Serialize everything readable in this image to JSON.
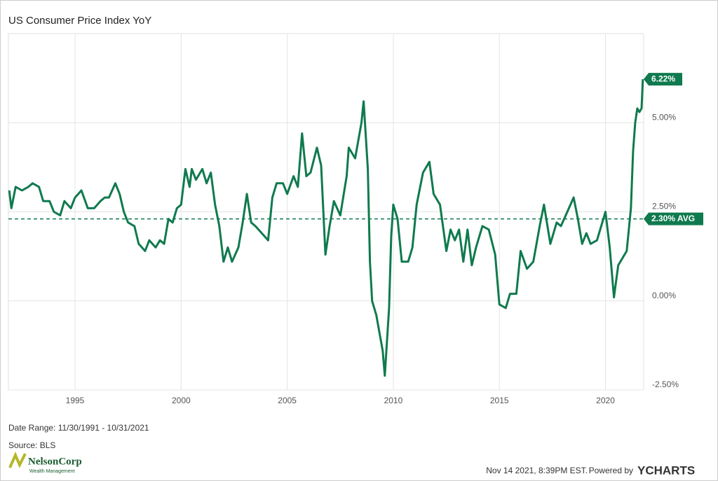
{
  "chart_data": {
    "type": "line",
    "title": "US Consumer Price Index YoY",
    "x": [
      1991.9,
      1992.0,
      1992.2,
      1992.5,
      1992.8,
      1993.0,
      1993.3,
      1993.5,
      1993.8,
      1994.0,
      1994.3,
      1994.5,
      1994.8,
      1995.0,
      1995.3,
      1995.6,
      1995.9,
      1996.2,
      1996.4,
      1996.6,
      1996.9,
      1997.1,
      1997.3,
      1997.5,
      1997.8,
      1998.0,
      1998.3,
      1998.5,
      1998.8,
      1999.0,
      1999.2,
      1999.4,
      1999.6,
      1999.8,
      2000.0,
      2000.2,
      2000.4,
      2000.5,
      2000.7,
      2001.0,
      2001.2,
      2001.4,
      2001.6,
      2001.8,
      2002.0,
      2002.2,
      2002.4,
      2002.7,
      2002.9,
      2003.1,
      2003.3,
      2003.5,
      2003.8,
      2004.1,
      2004.3,
      2004.5,
      2004.8,
      2005.0,
      2005.3,
      2005.5,
      2005.7,
      2005.9,
      2006.1,
      2006.4,
      2006.6,
      2006.8,
      2007.0,
      2007.2,
      2007.5,
      2007.8,
      2007.9,
      2008.2,
      2008.5,
      2008.6,
      2008.8,
      2008.9,
      2009.0,
      2009.2,
      2009.5,
      2009.6,
      2009.8,
      2009.9,
      2010.0,
      2010.2,
      2010.4,
      2010.7,
      2010.9,
      2011.1,
      2011.4,
      2011.7,
      2011.9,
      2012.2,
      2012.5,
      2012.7,
      2012.9,
      2013.1,
      2013.3,
      2013.5,
      2013.7,
      2013.9,
      2014.2,
      2014.5,
      2014.8,
      2015.0,
      2015.3,
      2015.5,
      2015.8,
      2016.0,
      2016.3,
      2016.6,
      2016.9,
      2017.1,
      2017.4,
      2017.7,
      2017.9,
      2018.2,
      2018.5,
      2018.7,
      2018.9,
      2019.1,
      2019.3,
      2019.6,
      2019.9,
      2020.0,
      2020.2,
      2020.4,
      2020.6,
      2020.8,
      2021.0,
      2021.2,
      2021.3,
      2021.4,
      2021.5,
      2021.6,
      2021.7,
      2021.76
    ],
    "series": [
      {
        "name": "US Consumer Price Index YoY",
        "color": "#0f7a4e",
        "values": [
          3.1,
          2.6,
          3.2,
          3.1,
          3.2,
          3.3,
          3.2,
          2.8,
          2.8,
          2.5,
          2.4,
          2.8,
          2.6,
          2.9,
          3.1,
          2.6,
          2.6,
          2.8,
          2.9,
          2.9,
          3.3,
          3.0,
          2.5,
          2.2,
          2.1,
          1.6,
          1.4,
          1.7,
          1.5,
          1.7,
          1.6,
          2.3,
          2.2,
          2.6,
          2.7,
          3.7,
          3.2,
          3.7,
          3.4,
          3.7,
          3.3,
          3.6,
          2.7,
          2.1,
          1.1,
          1.5,
          1.1,
          1.5,
          2.2,
          3.0,
          2.2,
          2.1,
          1.9,
          1.7,
          2.9,
          3.3,
          3.3,
          3.0,
          3.5,
          3.2,
          4.7,
          3.5,
          3.6,
          4.3,
          3.8,
          1.3,
          2.1,
          2.8,
          2.4,
          3.5,
          4.3,
          4.0,
          5.0,
          5.6,
          3.7,
          1.1,
          0.0,
          -0.4,
          -1.4,
          -2.1,
          -0.2,
          1.8,
          2.7,
          2.3,
          1.1,
          1.1,
          1.5,
          2.7,
          3.6,
          3.9,
          3.0,
          2.7,
          1.4,
          2.0,
          1.7,
          2.0,
          1.1,
          2.0,
          1.0,
          1.5,
          2.1,
          2.0,
          1.3,
          -0.1,
          -0.2,
          0.2,
          0.2,
          1.4,
          0.9,
          1.1,
          2.1,
          2.7,
          1.6,
          2.2,
          2.1,
          2.5,
          2.9,
          2.3,
          1.6,
          1.9,
          1.6,
          1.7,
          2.3,
          2.5,
          1.5,
          0.1,
          1.0,
          1.2,
          1.4,
          2.6,
          4.2,
          5.0,
          5.4,
          5.3,
          5.4,
          6.22
        ]
      }
    ],
    "end_label": "6.22%",
    "average": {
      "value": 2.3,
      "label": "2.30% AVG"
    },
    "xlim": [
      1991.86,
      2021.8
    ],
    "xticks": [
      1995,
      2000,
      2005,
      2010,
      2015,
      2020
    ],
    "ylim": [
      -2.5,
      7.5
    ],
    "yticks": [
      {
        "value": -2.5,
        "label": "-2.50%"
      },
      {
        "value": 0,
        "label": "0.00%"
      },
      {
        "value": 2.5,
        "label": "2.50%"
      },
      {
        "value": 5,
        "label": "5.00%"
      }
    ],
    "grid": true,
    "footer": {
      "date_range": "Date Range: 11/30/1991 - 10/31/2021",
      "source": "Source: BLS",
      "timestamp": "Nov 14 2021, 8:39PM EST.",
      "powered": "Powered by",
      "brand": "YCHARTS",
      "logo": "NelsonCorp",
      "logo_sub": "Wealth Management"
    }
  }
}
